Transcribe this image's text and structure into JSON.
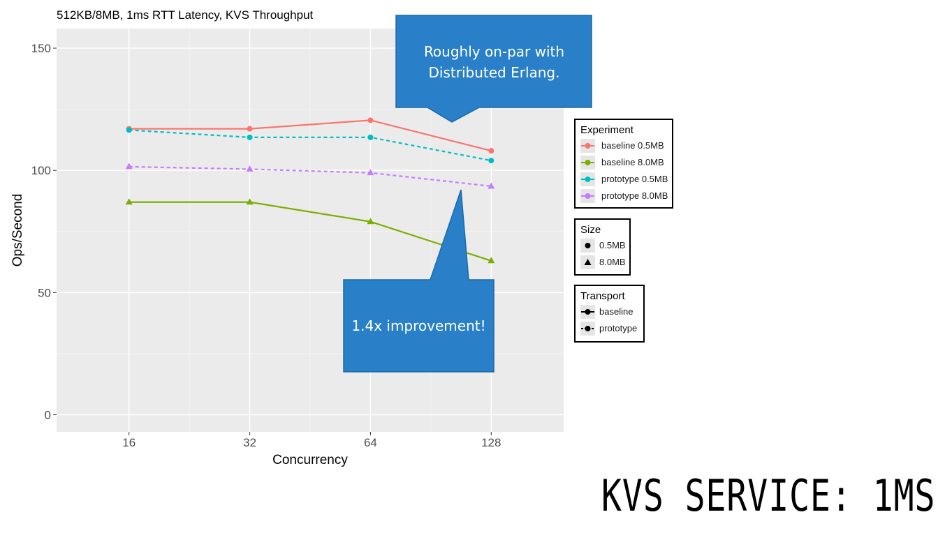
{
  "slide_title": "KVS SERVICE: 1MS",
  "chart_data": {
    "type": "line",
    "title": "512KB/8MB, 1ms RTT Latency, KVS Throughput",
    "xlabel": "Concurrency",
    "ylabel": "Ops/Second",
    "x": [
      16,
      32,
      64,
      128
    ],
    "x_scale": "log2",
    "x_ticks": [
      "16",
      "32",
      "64",
      "128"
    ],
    "y_ticks": [
      "0",
      "50",
      "100",
      "150"
    ],
    "ylim": [
      -7,
      158
    ],
    "grid": true,
    "series": [
      {
        "name": "baseline 0.5MB",
        "values": [
          117,
          117,
          120.5,
          108
        ],
        "color": "#F8766D",
        "size": "0.5MB",
        "transport": "baseline",
        "dash": "solid",
        "marker": "circle"
      },
      {
        "name": "baseline 8.0MB",
        "values": [
          87,
          87,
          79,
          63
        ],
        "color": "#7CAE00",
        "size": "8.0MB",
        "transport": "baseline",
        "dash": "solid",
        "marker": "triangle"
      },
      {
        "name": "prototype 0.5MB",
        "values": [
          116.5,
          113.5,
          113.5,
          104
        ],
        "color": "#00BFC4",
        "size": "0.5MB",
        "transport": "prototype",
        "dash": "dashed",
        "marker": "circle"
      },
      {
        "name": "prototype 8.0MB",
        "values": [
          101.5,
          100.5,
          99,
          93.5
        ],
        "color": "#C77CFF",
        "size": "8.0MB",
        "transport": "prototype",
        "dash": "dashed",
        "marker": "triangle"
      }
    ],
    "legend_placement": "right",
    "legends": {
      "experiment": {
        "title": "Experiment",
        "items": [
          "baseline 0.5MB",
          "baseline 8.0MB",
          "prototype 0.5MB",
          "prototype 8.0MB"
        ]
      },
      "size": {
        "title": "Size",
        "items": [
          "0.5MB",
          "8.0MB"
        ]
      },
      "transport": {
        "title": "Transport",
        "items": [
          "baseline",
          "prototype"
        ]
      }
    },
    "annotations": [
      {
        "text": "Roughly on-par with Distributed Erlang.",
        "color": "#2980C8"
      },
      {
        "text": "1.4x improvement!",
        "color": "#2980C8"
      }
    ]
  }
}
